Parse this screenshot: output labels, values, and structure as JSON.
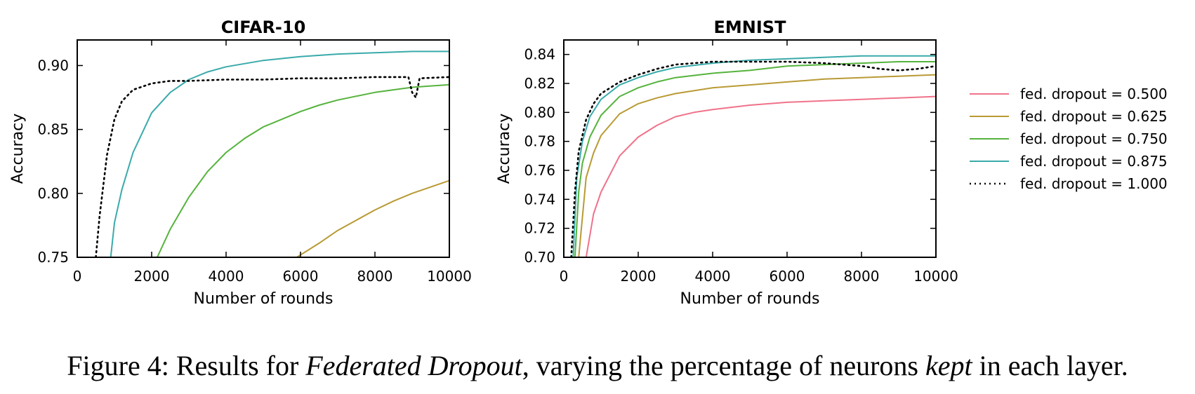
{
  "colors": {
    "fed. dropout = 0.500": "#f0728a",
    "fed. dropout = 0.625": "#b99a34",
    "fed. dropout = 0.750": "#55b33c",
    "fed. dropout = 0.875": "#3aaaaa",
    "fed. dropout = 1.000": "#000000"
  },
  "legend": {
    "placement": "right of EMNIST panel",
    "entries": [
      {
        "label": "fed. dropout = 0.500",
        "style": "solid"
      },
      {
        "label": "fed. dropout = 0.625",
        "style": "solid"
      },
      {
        "label": "fed. dropout = 0.750",
        "style": "solid"
      },
      {
        "label": "fed. dropout = 0.875",
        "style": "solid"
      },
      {
        "label": "fed. dropout = 1.000",
        "style": "dotted"
      }
    ]
  },
  "caption": {
    "prefix": "Figure 4: Results for ",
    "italic1": "Federated Dropout",
    "middle": ", varying the percentage of neurons ",
    "italic2": "kept",
    "suffix": " in each layer."
  },
  "chart_data": [
    {
      "type": "line",
      "title": "CIFAR-10",
      "xlabel": "Number of rounds",
      "ylabel": "Accuracy",
      "xlim": [
        0,
        10000
      ],
      "ylim": [
        0.75,
        0.92
      ],
      "xticks": [
        "0",
        "2000",
        "4000",
        "6000",
        "8000",
        "10000"
      ],
      "yticks": [
        "0.75",
        "0.80",
        "0.85",
        "0.90"
      ],
      "grid": false,
      "series": [
        {
          "name": "fed. dropout = 0.625",
          "x": [
            5900,
            6500,
            7000,
            7500,
            8000,
            8500,
            9000,
            9500,
            10000
          ],
          "y": [
            0.75,
            0.761,
            0.771,
            0.779,
            0.787,
            0.794,
            0.8,
            0.805,
            0.81
          ]
        },
        {
          "name": "fed. dropout = 0.750",
          "x": [
            2150,
            2500,
            3000,
            3500,
            4000,
            4500,
            5000,
            5500,
            6000,
            6500,
            7000,
            7500,
            8000,
            8500,
            9000,
            9500,
            10000
          ],
          "y": [
            0.75,
            0.772,
            0.797,
            0.817,
            0.832,
            0.843,
            0.852,
            0.858,
            0.864,
            0.869,
            0.873,
            0.876,
            0.879,
            0.881,
            0.883,
            0.884,
            0.885
          ]
        },
        {
          "name": "fed. dropout = 0.875",
          "x": [
            900,
            1000,
            1200,
            1500,
            2000,
            2500,
            3000,
            3500,
            4000,
            5000,
            6000,
            7000,
            8000,
            9000,
            10000
          ],
          "y": [
            0.75,
            0.777,
            0.803,
            0.832,
            0.863,
            0.879,
            0.889,
            0.895,
            0.899,
            0.904,
            0.907,
            0.909,
            0.91,
            0.911,
            0.911
          ]
        },
        {
          "name": "fed. dropout = 1.000",
          "x": [
            500,
            600,
            800,
            1000,
            1200,
            1500,
            2000,
            2500,
            3000,
            4000,
            5000,
            6000,
            7000,
            8000,
            8900,
            9000,
            9100,
            9200,
            10000
          ],
          "y": [
            0.75,
            0.782,
            0.83,
            0.858,
            0.872,
            0.881,
            0.886,
            0.888,
            0.888,
            0.889,
            0.889,
            0.89,
            0.89,
            0.891,
            0.891,
            0.879,
            0.875,
            0.89,
            0.891
          ]
        }
      ]
    },
    {
      "type": "line",
      "title": "EMNIST",
      "xlabel": "Number of rounds",
      "ylabel": "Accuracy",
      "xlim": [
        0,
        10000
      ],
      "ylim": [
        0.7,
        0.85
      ],
      "xticks": [
        "0",
        "2000",
        "4000",
        "6000",
        "8000",
        "10000"
      ],
      "yticks": [
        "0.70",
        "0.72",
        "0.74",
        "0.76",
        "0.78",
        "0.80",
        "0.82",
        "0.84"
      ],
      "grid": false,
      "series": [
        {
          "name": "fed. dropout = 0.500",
          "x": [
            600,
            800,
            1000,
            1500,
            2000,
            2500,
            3000,
            3500,
            4000,
            5000,
            6000,
            7000,
            8000,
            9000,
            10000
          ],
          "y": [
            0.7,
            0.73,
            0.745,
            0.77,
            0.783,
            0.791,
            0.797,
            0.8,
            0.802,
            0.805,
            0.807,
            0.808,
            0.809,
            0.81,
            0.811
          ]
        },
        {
          "name": "fed. dropout = 0.625",
          "x": [
            400,
            600,
            800,
            1000,
            1500,
            2000,
            2500,
            3000,
            4000,
            5000,
            6000,
            7000,
            8000,
            9000,
            10000
          ],
          "y": [
            0.7,
            0.755,
            0.772,
            0.784,
            0.799,
            0.806,
            0.81,
            0.813,
            0.817,
            0.819,
            0.821,
            0.823,
            0.824,
            0.825,
            0.826
          ]
        },
        {
          "name": "fed. dropout = 0.750",
          "x": [
            300,
            400,
            500,
            700,
            1000,
            1500,
            2000,
            2500,
            3000,
            4000,
            5000,
            6000,
            7000,
            8000,
            9000,
            10000
          ],
          "y": [
            0.7,
            0.745,
            0.765,
            0.783,
            0.798,
            0.811,
            0.817,
            0.821,
            0.824,
            0.827,
            0.829,
            0.832,
            0.833,
            0.834,
            0.835,
            0.835
          ]
        },
        {
          "name": "fed. dropout = 0.875",
          "x": [
            250,
            350,
            500,
            700,
            1000,
            1500,
            2000,
            2500,
            3000,
            4000,
            5000,
            6000,
            7000,
            8000,
            9000,
            10000
          ],
          "y": [
            0.7,
            0.755,
            0.78,
            0.797,
            0.809,
            0.819,
            0.824,
            0.828,
            0.831,
            0.834,
            0.836,
            0.837,
            0.838,
            0.839,
            0.839,
            0.839
          ]
        },
        {
          "name": "fed. dropout = 1.000",
          "x": [
            200,
            300,
            400,
            600,
            800,
            1000,
            1500,
            2000,
            2500,
            3000,
            3500,
            4000,
            5000,
            6000,
            7000,
            8000,
            8500,
            9000,
            9500,
            10000
          ],
          "y": [
            0.7,
            0.745,
            0.773,
            0.795,
            0.806,
            0.813,
            0.821,
            0.826,
            0.83,
            0.833,
            0.834,
            0.835,
            0.835,
            0.835,
            0.834,
            0.832,
            0.83,
            0.829,
            0.83,
            0.832
          ]
        }
      ]
    }
  ]
}
